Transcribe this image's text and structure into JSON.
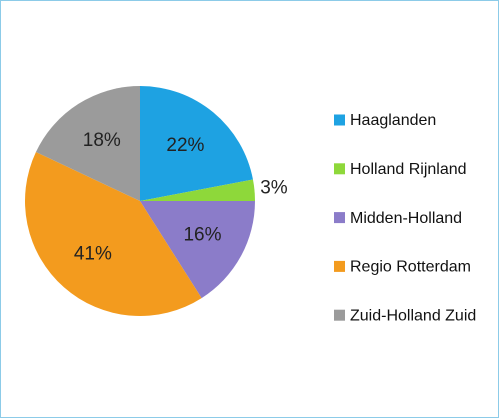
{
  "chart_data": {
    "type": "pie",
    "categories": [
      "Haaglanden",
      "Holland Rijnland",
      "Midden-Holland",
      "Regio Rotterdam",
      "Zuid-Holland Zuid"
    ],
    "values": [
      22,
      3,
      16,
      41,
      18
    ],
    "value_labels": [
      "22%",
      "3%",
      "16%",
      "41%",
      "18%"
    ],
    "colors": [
      "#1ea2e2",
      "#8ed83a",
      "#8b7cc9",
      "#f39b1e",
      "#9b9b9b"
    ],
    "legend": "right"
  }
}
